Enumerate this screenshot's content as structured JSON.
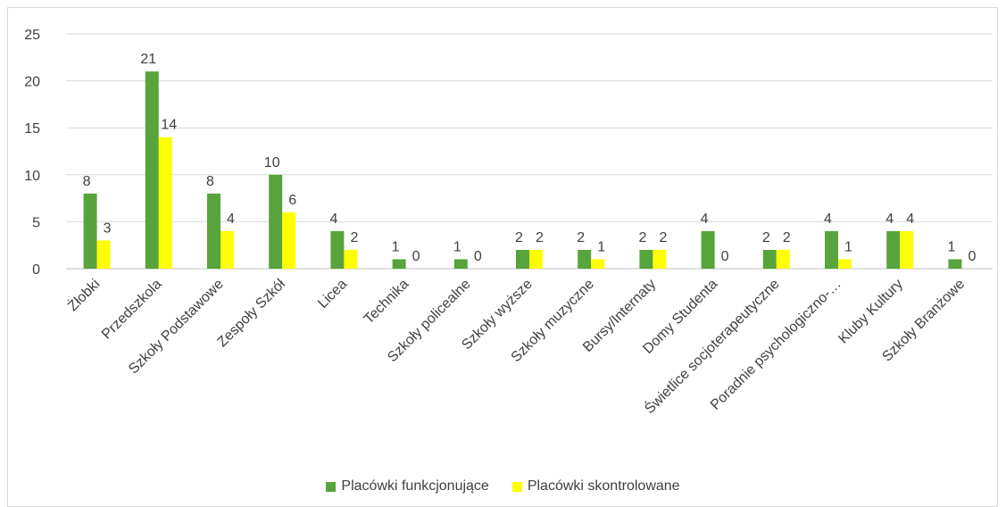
{
  "chart_data": {
    "type": "bar",
    "title": "",
    "xlabel": "",
    "ylabel": "",
    "ylim": [
      0,
      25
    ],
    "yticks": [
      0,
      5,
      10,
      15,
      20,
      25
    ],
    "grid": true,
    "legend_position": "bottom",
    "categories": [
      "Żłobki",
      "Przedszkola",
      "Szkoły Podstawowe",
      "Zespoły Szkół",
      "Licea",
      "Technika",
      "Szkoły policealne",
      "Szkoły wyższe",
      "Szkoły muzyczne",
      "Bursy/Internaty",
      "Domy Studenta",
      "Świetlice socjoterapeutyczne",
      "Poradnie psychologiczno-…",
      "Kluby Kultury",
      "Szkoły Branżowe"
    ],
    "series": [
      {
        "name": "Placówki funkcjonujące",
        "color": "#56a43b",
        "values": [
          8,
          21,
          8,
          10,
          4,
          1,
          1,
          2,
          2,
          2,
          4,
          2,
          4,
          4,
          1
        ]
      },
      {
        "name": "Placówki skontrolowane",
        "color": "#ffff00",
        "values": [
          3,
          14,
          4,
          6,
          2,
          0,
          0,
          2,
          1,
          2,
          0,
          2,
          1,
          4,
          0
        ]
      }
    ]
  }
}
